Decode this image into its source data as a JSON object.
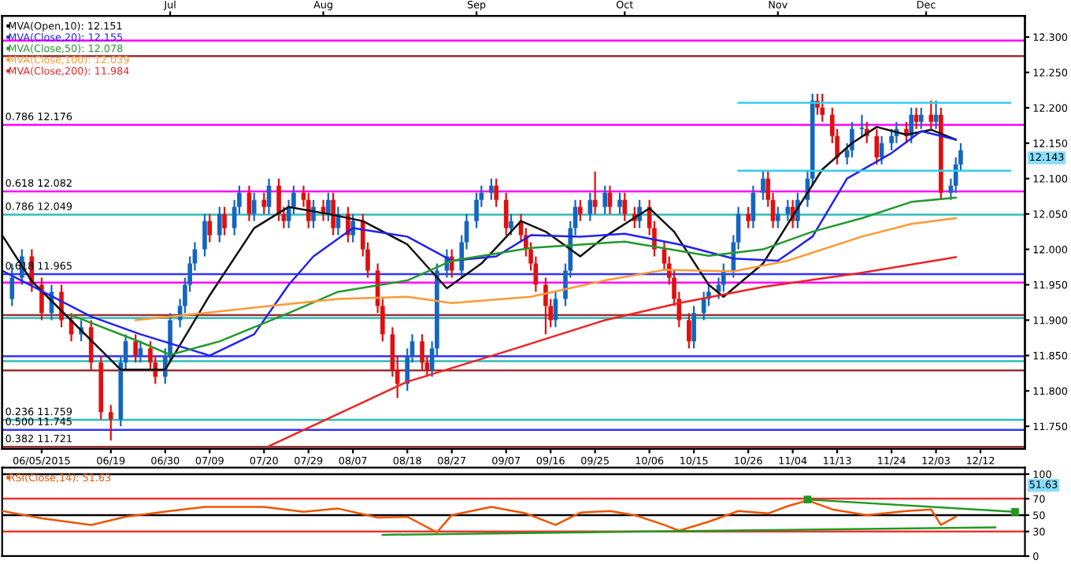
{
  "chart_data": [
    {
      "type": "candlestick",
      "x": [
        "2015-05-30",
        "2015-06-01",
        "2015-06-03",
        "2015-06-05",
        "2015-06-07",
        "2015-06-09",
        "2015-06-11",
        "2015-06-13",
        "2015-06-15",
        "2015-06-17",
        "2015-06-19",
        "2015-06-21",
        "2015-06-22",
        "2015-06-24",
        "2015-06-25",
        "2015-06-27",
        "2015-06-28",
        "2015-06-30",
        "2015-07-01",
        "2015-07-03",
        "2015-07-04",
        "2015-07-05",
        "2015-07-06",
        "2015-07-08",
        "2015-07-09",
        "2015-07-11",
        "2015-07-12",
        "2015-07-14",
        "2015-07-15",
        "2015-07-17",
        "2015-07-18",
        "2015-07-20",
        "2015-07-21",
        "2015-07-23",
        "2015-07-24",
        "2015-07-25",
        "2015-07-26",
        "2015-07-28",
        "2015-07-29",
        "2015-07-30",
        "2015-08-01",
        "2015-08-02",
        "2015-08-03",
        "2015-08-04",
        "2015-08-06",
        "2015-08-07",
        "2015-08-09",
        "2015-08-10",
        "2015-08-12",
        "2015-08-13",
        "2015-08-15",
        "2015-08-16",
        "2015-08-18",
        "2015-08-19",
        "2015-08-21",
        "2015-08-22",
        "2015-08-23",
        "2015-08-24",
        "2015-08-26",
        "2015-08-27",
        "2015-08-29",
        "2015-08-30",
        "2015-09-01",
        "2015-09-02",
        "2015-09-04",
        "2015-09-05",
        "2015-09-07",
        "2015-09-08",
        "2015-09-10",
        "2015-09-11",
        "2015-09-12",
        "2015-09-13",
        "2015-09-15",
        "2015-09-16",
        "2015-09-17",
        "2015-09-19",
        "2015-09-20",
        "2015-09-21",
        "2015-09-22",
        "2015-09-24",
        "2015-09-25",
        "2015-09-27",
        "2015-09-28",
        "2015-09-30",
        "2015-10-01",
        "2015-10-03",
        "2015-10-04",
        "2015-10-06",
        "2015-10-07",
        "2015-10-09",
        "2015-10-10",
        "2015-10-11",
        "2015-10-12",
        "2015-10-14",
        "2015-10-15",
        "2015-10-17",
        "2015-10-18",
        "2015-10-20",
        "2015-10-21",
        "2015-10-23",
        "2015-10-24",
        "2015-10-26",
        "2015-10-27",
        "2015-10-29",
        "2015-10-30",
        "2015-10-31",
        "2015-11-01",
        "2015-11-03",
        "2015-11-04",
        "2015-11-05",
        "2015-11-07",
        "2015-11-08",
        "2015-11-09",
        "2015-11-10",
        "2015-11-12",
        "2015-11-13",
        "2015-11-15",
        "2015-11-16",
        "2015-11-18",
        "2015-11-19",
        "2015-11-21",
        "2015-11-22",
        "2015-11-24",
        "2015-11-25",
        "2015-11-27",
        "2015-11-28",
        "2015-11-29",
        "2015-11-30",
        "2015-12-02",
        "2015-12-03",
        "2015-12-04",
        "2015-12-06",
        "2015-12-07",
        "2015-12-08"
      ],
      "ohlc": [
        [
          11.93,
          11.98,
          11.92,
          11.96
        ],
        [
          11.96,
          12.0,
          11.95,
          11.99
        ],
        [
          11.99,
          12.0,
          11.94,
          11.95
        ],
        [
          11.95,
          11.96,
          11.9,
          11.91
        ],
        [
          11.91,
          11.95,
          11.9,
          11.94
        ],
        [
          11.94,
          11.95,
          11.89,
          11.9
        ],
        [
          11.9,
          11.91,
          11.87,
          11.88
        ],
        [
          11.88,
          11.9,
          11.87,
          11.89
        ],
        [
          11.89,
          11.9,
          11.83,
          11.84
        ],
        [
          11.84,
          11.85,
          11.76,
          11.77
        ],
        [
          11.77,
          11.78,
          11.73,
          11.76
        ],
        [
          11.76,
          11.85,
          11.75,
          11.84
        ],
        [
          11.84,
          11.88,
          11.83,
          11.87
        ],
        [
          11.87,
          11.88,
          11.84,
          11.85
        ],
        [
          11.85,
          11.87,
          11.84,
          11.86
        ],
        [
          11.86,
          11.87,
          11.83,
          11.84
        ],
        [
          11.84,
          11.85,
          11.81,
          11.82
        ],
        [
          11.82,
          11.86,
          11.81,
          11.85
        ],
        [
          11.85,
          11.91,
          11.84,
          11.9
        ],
        [
          11.9,
          11.93,
          11.89,
          11.92
        ],
        [
          11.92,
          11.96,
          11.91,
          11.95
        ],
        [
          11.95,
          11.99,
          11.94,
          11.98
        ],
        [
          11.98,
          12.01,
          11.97,
          12.0
        ],
        [
          12.0,
          12.05,
          11.99,
          12.04
        ],
        [
          12.04,
          12.05,
          12.01,
          12.02
        ],
        [
          12.02,
          12.06,
          12.01,
          12.05
        ],
        [
          12.05,
          12.06,
          12.02,
          12.03
        ],
        [
          12.03,
          12.07,
          12.02,
          12.06
        ],
        [
          12.06,
          12.09,
          12.05,
          12.08
        ],
        [
          12.08,
          12.09,
          12.04,
          12.05
        ],
        [
          12.05,
          12.08,
          12.04,
          12.07
        ],
        [
          12.07,
          12.08,
          12.05,
          12.06
        ],
        [
          12.06,
          12.1,
          12.05,
          12.09
        ],
        [
          12.09,
          12.1,
          12.04,
          12.05
        ],
        [
          12.05,
          12.06,
          12.03,
          12.04
        ],
        [
          12.04,
          12.07,
          12.03,
          12.06
        ],
        [
          12.06,
          12.09,
          12.05,
          12.08
        ],
        [
          12.08,
          12.09,
          12.06,
          12.07
        ],
        [
          12.07,
          12.08,
          12.03,
          12.04
        ],
        [
          12.04,
          12.07,
          12.03,
          12.06
        ],
        [
          12.06,
          12.07,
          12.04,
          12.05
        ],
        [
          12.05,
          12.08,
          12.04,
          12.07
        ],
        [
          12.07,
          12.08,
          12.02,
          12.03
        ],
        [
          12.03,
          12.06,
          12.02,
          12.05
        ],
        [
          12.05,
          12.06,
          12.01,
          12.02
        ],
        [
          12.02,
          12.05,
          12.01,
          12.04
        ],
        [
          12.04,
          12.05,
          11.99,
          12.0
        ],
        [
          12.0,
          12.01,
          11.96,
          11.97
        ],
        [
          11.97,
          11.98,
          11.91,
          11.92
        ],
        [
          11.92,
          11.93,
          11.87,
          11.88
        ],
        [
          11.88,
          11.89,
          11.82,
          11.83
        ],
        [
          11.83,
          11.85,
          11.79,
          11.81
        ],
        [
          11.81,
          11.86,
          11.8,
          11.85
        ],
        [
          11.85,
          11.88,
          11.84,
          11.87
        ],
        [
          11.87,
          11.88,
          11.83,
          11.84
        ],
        [
          11.84,
          11.85,
          11.82,
          11.83
        ],
        [
          11.83,
          11.87,
          11.82,
          11.86
        ],
        [
          11.86,
          11.98,
          11.85,
          11.97
        ],
        [
          11.97,
          12.0,
          11.96,
          11.99
        ],
        [
          11.99,
          12.0,
          11.96,
          11.97
        ],
        [
          11.97,
          12.02,
          11.96,
          12.01
        ],
        [
          12.01,
          12.05,
          12.0,
          12.04
        ],
        [
          12.04,
          12.08,
          12.03,
          12.07
        ],
        [
          12.07,
          12.09,
          12.06,
          12.08
        ],
        [
          12.08,
          12.1,
          12.07,
          12.09
        ],
        [
          12.09,
          12.1,
          12.06,
          12.07
        ],
        [
          12.07,
          12.08,
          12.02,
          12.03
        ],
        [
          12.03,
          12.05,
          12.02,
          12.04
        ],
        [
          12.04,
          12.05,
          12.01,
          12.02
        ],
        [
          12.02,
          12.03,
          11.99,
          12.0
        ],
        [
          12.0,
          12.01,
          11.97,
          11.98
        ],
        [
          11.98,
          11.99,
          11.94,
          11.95
        ],
        [
          11.95,
          11.96,
          11.88,
          11.92
        ],
        [
          11.92,
          11.93,
          11.89,
          11.9
        ],
        [
          11.9,
          11.94,
          11.89,
          11.93
        ],
        [
          11.93,
          11.98,
          11.92,
          11.97
        ],
        [
          11.97,
          12.04,
          11.96,
          12.03
        ],
        [
          12.03,
          12.07,
          12.02,
          12.06
        ],
        [
          12.06,
          12.07,
          12.04,
          12.05
        ],
        [
          12.05,
          12.08,
          12.04,
          12.07
        ],
        [
          12.07,
          12.11,
          12.05,
          12.06
        ],
        [
          12.06,
          12.09,
          12.05,
          12.08
        ],
        [
          12.08,
          12.09,
          12.05,
          12.06
        ],
        [
          12.06,
          12.08,
          12.05,
          12.07
        ],
        [
          12.07,
          12.08,
          12.04,
          12.05
        ],
        [
          12.05,
          12.06,
          12.03,
          12.04
        ],
        [
          12.04,
          12.07,
          12.03,
          12.06
        ],
        [
          12.06,
          12.07,
          12.02,
          12.03
        ],
        [
          12.03,
          12.04,
          11.99,
          12.0
        ],
        [
          12.0,
          12.01,
          11.97,
          11.98
        ],
        [
          11.98,
          11.99,
          11.95,
          11.96
        ],
        [
          11.96,
          11.97,
          11.92,
          11.93
        ],
        [
          11.93,
          11.94,
          11.89,
          11.9
        ],
        [
          11.9,
          11.91,
          11.86,
          11.87
        ],
        [
          11.87,
          11.92,
          11.86,
          11.91
        ],
        [
          11.91,
          11.94,
          11.9,
          11.93
        ],
        [
          11.93,
          11.95,
          11.92,
          11.94
        ],
        [
          11.94,
          11.96,
          11.93,
          11.95
        ],
        [
          11.95,
          11.98,
          11.94,
          11.97
        ],
        [
          11.97,
          12.02,
          11.96,
          12.01
        ],
        [
          12.01,
          12.06,
          12.0,
          12.05
        ],
        [
          12.05,
          12.06,
          12.03,
          12.04
        ],
        [
          12.04,
          12.09,
          12.03,
          12.08
        ],
        [
          12.08,
          12.11,
          12.07,
          12.1
        ],
        [
          12.1,
          12.11,
          12.06,
          12.07
        ],
        [
          12.07,
          12.08,
          12.03,
          12.04
        ],
        [
          12.04,
          12.06,
          12.03,
          12.05
        ],
        [
          12.05,
          12.07,
          12.04,
          12.06
        ],
        [
          12.06,
          12.07,
          12.03,
          12.04
        ],
        [
          12.04,
          12.08,
          12.03,
          12.07
        ],
        [
          12.07,
          12.11,
          12.06,
          12.1
        ],
        [
          12.1,
          12.22,
          12.09,
          12.21
        ],
        [
          12.21,
          12.22,
          12.19,
          12.2
        ],
        [
          12.2,
          12.22,
          12.18,
          12.19
        ],
        [
          12.19,
          12.2,
          12.15,
          12.16
        ],
        [
          12.16,
          12.17,
          12.12,
          12.13
        ],
        [
          12.13,
          12.15,
          12.12,
          12.14
        ],
        [
          12.14,
          12.18,
          12.13,
          12.17
        ],
        [
          12.17,
          12.19,
          12.16,
          12.17
        ],
        [
          12.17,
          12.18,
          12.15,
          12.16
        ],
        [
          12.16,
          12.17,
          12.12,
          12.13
        ],
        [
          12.13,
          12.16,
          12.12,
          12.15
        ],
        [
          12.15,
          12.17,
          12.14,
          12.16
        ],
        [
          12.16,
          12.18,
          12.15,
          12.17
        ],
        [
          12.17,
          12.18,
          12.15,
          12.16
        ],
        [
          12.16,
          12.2,
          12.15,
          12.19
        ],
        [
          12.19,
          12.2,
          12.17,
          12.18
        ],
        [
          12.18,
          12.2,
          12.17,
          12.19
        ],
        [
          12.19,
          12.21,
          12.17,
          12.18
        ],
        [
          12.18,
          12.21,
          12.17,
          12.19
        ],
        [
          12.19,
          12.2,
          12.07,
          12.08
        ],
        [
          12.08,
          12.1,
          12.07,
          12.09
        ],
        [
          12.09,
          12.13,
          12.08,
          12.12
        ],
        [
          12.12,
          12.15,
          12.11,
          12.14
        ]
      ],
      "colors": [
        "#1565c0",
        "#1565c0",
        "#e01010",
        "#e01010",
        "#1565c0",
        "#e01010",
        "#e01010",
        "#1565c0",
        "#e01010",
        "#e01010",
        "#e01010",
        "#1565c0",
        "#1565c0",
        "#e01010",
        "#1565c0",
        "#e01010",
        "#e01010",
        "#1565c0",
        "#1565c0",
        "#1565c0",
        "#1565c0",
        "#1565c0",
        "#1565c0",
        "#1565c0",
        "#e01010",
        "#1565c0",
        "#e01010",
        "#1565c0",
        "#1565c0",
        "#e01010",
        "#1565c0",
        "#e01010",
        "#1565c0",
        "#e01010",
        "#e01010",
        "#1565c0",
        "#1565c0",
        "#e01010",
        "#e01010",
        "#1565c0",
        "#e01010",
        "#1565c0",
        "#e01010",
        "#1565c0",
        "#e01010",
        "#1565c0",
        "#e01010",
        "#e01010",
        "#e01010",
        "#e01010",
        "#e01010",
        "#e01010",
        "#1565c0",
        "#1565c0",
        "#e01010",
        "#e01010",
        "#1565c0",
        "#1565c0",
        "#1565c0",
        "#e01010",
        "#1565c0",
        "#1565c0",
        "#1565c0",
        "#1565c0",
        "#1565c0",
        "#e01010",
        "#e01010",
        "#1565c0",
        "#e01010",
        "#e01010",
        "#e01010",
        "#e01010",
        "#e01010",
        "#e01010",
        "#1565c0",
        "#1565c0",
        "#1565c0",
        "#1565c0",
        "#e01010",
        "#1565c0",
        "#e01010",
        "#1565c0",
        "#e01010",
        "#1565c0",
        "#e01010",
        "#e01010",
        "#1565c0",
        "#e01010",
        "#e01010",
        "#e01010",
        "#e01010",
        "#e01010",
        "#e01010",
        "#e01010",
        "#1565c0",
        "#1565c0",
        "#1565c0",
        "#1565c0",
        "#1565c0",
        "#1565c0",
        "#1565c0",
        "#e01010",
        "#1565c0",
        "#1565c0",
        "#e01010",
        "#e01010",
        "#1565c0",
        "#1565c0",
        "#e01010",
        "#1565c0",
        "#1565c0",
        "#1565c0",
        "#e01010",
        "#e01010",
        "#e01010",
        "#e01010",
        "#1565c0",
        "#1565c0",
        "#1565c0",
        "#e01010",
        "#e01010",
        "#1565c0",
        "#1565c0",
        "#1565c0",
        "#e01010",
        "#1565c0",
        "#e01010",
        "#1565c0",
        "#e01010",
        "#1565c0",
        "#e01010",
        "#1565c0",
        "#1565c0",
        "#1565c0"
      ],
      "series": [
        {
          "type": "line",
          "name": "MVA(Open,10): 12.151",
          "color": "#111111",
          "x": [
            "2015-05-28",
            "2015-06-03",
            "2015-06-21",
            "2015-06-30",
            "2015-07-09",
            "2015-07-18",
            "2015-07-25",
            "2015-08-02",
            "2015-08-09",
            "2015-08-18",
            "2015-08-26",
            "2015-09-02",
            "2015-09-10",
            "2015-09-15",
            "2015-09-22",
            "2015-09-27",
            "2015-10-06",
            "2015-10-11",
            "2015-10-18",
            "2015-10-21",
            "2015-10-29",
            "2015-11-04",
            "2015-11-10",
            "2015-11-16",
            "2015-11-21",
            "2015-11-27",
            "2015-12-02",
            "2015-12-07"
          ],
          "values": [
            12.02,
            11.955,
            11.83,
            11.83,
            11.935,
            12.03,
            12.06,
            12.05,
            12.04,
            12.007,
            11.945,
            11.98,
            12.04,
            12.025,
            11.99,
            12.018,
            12.058,
            12.025,
            11.95,
            11.933,
            11.98,
            12.047,
            12.113,
            12.15,
            12.173,
            12.162,
            12.169,
            12.155
          ]
        },
        {
          "type": "line",
          "name": "MVA(Close,20): 12.155",
          "color": "#2222ee",
          "x": [
            "2015-05-28",
            "2015-06-15",
            "2015-06-25",
            "2015-07-09",
            "2015-07-18",
            "2015-07-25",
            "2015-07-30",
            "2015-08-07",
            "2015-08-18",
            "2015-08-27",
            "2015-09-05",
            "2015-09-12",
            "2015-09-22",
            "2015-10-01",
            "2015-10-12",
            "2015-10-23",
            "2015-11-01",
            "2015-11-08",
            "2015-11-15",
            "2015-11-24",
            "2015-11-30",
            "2015-12-07"
          ],
          "values": [
            11.97,
            11.905,
            11.88,
            11.85,
            11.88,
            11.95,
            11.99,
            12.03,
            12.018,
            11.984,
            11.99,
            12.02,
            12.018,
            12.022,
            12.007,
            11.987,
            11.984,
            12.018,
            12.1,
            12.136,
            12.167,
            12.155
          ]
        },
        {
          "type": "line",
          "name": "MVA(Close,50): 12.078",
          "color": "#22992b",
          "x": [
            "2015-06-11",
            "2015-06-25",
            "2015-07-01",
            "2015-07-11",
            "2015-07-25",
            "2015-08-04",
            "2015-08-18",
            "2015-08-27",
            "2015-09-12",
            "2015-10-01",
            "2015-10-18",
            "2015-10-29",
            "2015-11-08",
            "2015-11-18",
            "2015-11-28",
            "2015-12-07"
          ],
          "values": [
            11.907,
            11.869,
            11.851,
            11.87,
            11.91,
            11.94,
            11.956,
            11.984,
            12.002,
            12.011,
            11.991,
            12.0,
            12.025,
            12.044,
            12.067,
            12.073
          ]
        },
        {
          "type": "line",
          "name": "MVA(Close,100): 12.039",
          "color": "#ff9933",
          "x": [
            "2015-06-24",
            "2015-07-04",
            "2015-07-21",
            "2015-08-04",
            "2015-08-18",
            "2015-08-27",
            "2015-09-12",
            "2015-09-27",
            "2015-10-09",
            "2015-10-23",
            "2015-11-03",
            "2015-11-18",
            "2015-11-28",
            "2015-12-07"
          ],
          "values": [
            11.9,
            11.907,
            11.92,
            11.93,
            11.933,
            11.924,
            11.933,
            11.956,
            11.971,
            11.969,
            11.984,
            12.018,
            12.036,
            12.044
          ]
        },
        {
          "type": "line",
          "name": "MVA(Close,200): 11.984",
          "color": "#ee2222",
          "x": [
            "2015-07-21",
            "2015-08-18",
            "2015-09-08",
            "2015-09-27",
            "2015-10-12",
            "2015-10-29",
            "2015-11-18",
            "2015-12-07"
          ],
          "values": [
            11.722,
            11.813,
            11.858,
            11.9,
            11.924,
            11.947,
            11.967,
            11.989
          ]
        },
        {
          "type": "line",
          "color": "#33ccee",
          "x": [
            "2015-10-24",
            "2015-12-18"
          ],
          "values": [
            12.207,
            12.207
          ]
        },
        {
          "type": "line",
          "color": "#33ccee",
          "x": [
            "2015-10-24",
            "2015-12-18"
          ],
          "values": [
            12.111,
            12.111
          ]
        }
      ],
      "ref_lines": [
        {
          "axis": "y",
          "value": 12.295,
          "color": "#ff00ff"
        },
        {
          "axis": "y",
          "value": 12.273,
          "color": "#993333"
        },
        {
          "axis": "y",
          "value": 12.176,
          "color": "#ff00ff",
          "label": "0.786 12.176"
        },
        {
          "axis": "y",
          "value": 12.082,
          "color": "#ff00ff",
          "label": "0.618 12.082"
        },
        {
          "axis": "y",
          "value": 12.049,
          "color": "#33bbbb",
          "label": "0.786 12.049"
        },
        {
          "axis": "y",
          "value": 11.965,
          "color": "#3333ff",
          "label": "0.618 11.965"
        },
        {
          "axis": "y",
          "value": 11.953,
          "color": "#ff00ff"
        },
        {
          "axis": "y",
          "value": 11.907,
          "color": "#993333"
        },
        {
          "axis": "y",
          "value": 11.903,
          "color": "#33bbbb"
        },
        {
          "axis": "y",
          "value": 11.849,
          "color": "#3333ff"
        },
        {
          "axis": "y",
          "value": 11.842,
          "color": "#33bbbb"
        },
        {
          "axis": "y",
          "value": 11.829,
          "color": "#993333"
        },
        {
          "axis": "y",
          "value": 11.759,
          "color": "#33bbbb",
          "label": "0.236 11.759"
        },
        {
          "axis": "y",
          "value": 11.745,
          "color": "#3333ff",
          "label": "0.500 11.745"
        },
        {
          "axis": "y",
          "value": 11.721,
          "color": "#993333",
          "label": "0.382 11.721"
        }
      ],
      "annotations": [
        "12.143"
      ],
      "xlim": [
        "2015-05-28",
        "2015-12-21"
      ],
      "ylim": [
        11.718,
        12.33
      ],
      "xticks": [
        {
          "value": "2015-06-05",
          "label": "06/05/2015"
        },
        {
          "value": "2015-06-19",
          "label": "06/19"
        },
        {
          "value": "2015-06-30",
          "label": "06/30"
        },
        {
          "value": "2015-07-09",
          "label": "07/09"
        },
        {
          "value": "2015-07-20",
          "label": "07/20"
        },
        {
          "value": "2015-07-29",
          "label": "07/29"
        },
        {
          "value": "2015-08-07",
          "label": "08/07"
        },
        {
          "value": "2015-08-18",
          "label": "08/18"
        },
        {
          "value": "2015-08-27",
          "label": "08/27"
        },
        {
          "value": "2015-09-07",
          "label": "09/07"
        },
        {
          "value": "2015-09-16",
          "label": "09/16"
        },
        {
          "value": "2015-09-25",
          "label": "09/25"
        },
        {
          "value": "2015-10-06",
          "label": "10/06"
        },
        {
          "value": "2015-10-15",
          "label": "10/15"
        },
        {
          "value": "2015-10-26",
          "label": "10/26"
        },
        {
          "value": "2015-11-04",
          "label": "11/04"
        },
        {
          "value": "2015-11-13",
          "label": "11/13"
        },
        {
          "value": "2015-11-24",
          "label": "11/24"
        },
        {
          "value": "2015-12-03",
          "label": "12/03"
        },
        {
          "value": "2015-12-12",
          "label": "12/12"
        }
      ],
      "yticks": [
        {
          "value": 11.75,
          "label": "11.750"
        },
        {
          "value": 11.8,
          "label": "11.800"
        },
        {
          "value": 11.85,
          "label": "11.850"
        },
        {
          "value": 11.9,
          "label": "11.900"
        },
        {
          "value": 11.95,
          "label": "11.950"
        },
        {
          "value": 12.0,
          "label": "12.000"
        },
        {
          "value": 12.05,
          "label": "12.050"
        },
        {
          "value": 12.1,
          "label": "12.100"
        },
        {
          "value": 12.15,
          "label": "12.150"
        },
        {
          "value": 12.2,
          "label": "12.200"
        },
        {
          "value": 12.25,
          "label": "12.250"
        },
        {
          "value": 12.3,
          "label": "12.300"
        }
      ],
      "x2lim": [
        "2015-05-28",
        "2015-12-21"
      ],
      "x2ticks": [
        {
          "value": "2015-07-01",
          "label": "Jul"
        },
        {
          "value": "2015-08-01",
          "label": "Aug"
        },
        {
          "value": "2015-09-01",
          "label": "Sep"
        },
        {
          "value": "2015-10-01",
          "label": "Oct"
        },
        {
          "value": "2015-11-01",
          "label": "Nov"
        },
        {
          "value": "2015-12-01",
          "label": "Dec"
        }
      ],
      "legend": "top left",
      "grid": false
    },
    {
      "type": "line",
      "series": [
        {
          "name": "RSI(Close,14): 51.63",
          "color": "#ee5500",
          "x": [
            "2015-05-28",
            "2015-06-05",
            "2015-06-15",
            "2015-06-22",
            "2015-07-01",
            "2015-07-08",
            "2015-07-20",
            "2015-07-28",
            "2015-08-04",
            "2015-08-12",
            "2015-08-18",
            "2015-08-24",
            "2015-08-27",
            "2015-09-04",
            "2015-09-11",
            "2015-09-17",
            "2015-09-22",
            "2015-09-28",
            "2015-10-03",
            "2015-10-09",
            "2015-10-12",
            "2015-10-18",
            "2015-10-24",
            "2015-10-30",
            "2015-11-03",
            "2015-11-07",
            "2015-11-12",
            "2015-11-19",
            "2015-11-27",
            "2015-12-02",
            "2015-12-04",
            "2015-12-07"
          ],
          "values": [
            55,
            46,
            38,
            48,
            55,
            60,
            60,
            54,
            58,
            47,
            48,
            29,
            50,
            60,
            52,
            38,
            53,
            55,
            50,
            38,
            31,
            42,
            55,
            52,
            61,
            68,
            57,
            50,
            55,
            57,
            38,
            48
          ]
        },
        {
          "color": "#229922",
          "marker": "square",
          "x": [
            "2015-11-07",
            "2015-12-19"
          ],
          "values": [
            69,
            54
          ]
        },
        {
          "color": "#229922",
          "x": [
            "2015-08-13",
            "2015-12-15"
          ],
          "values": [
            26,
            35
          ]
        }
      ],
      "ref_lines": [
        {
          "axis": "y",
          "value": 100,
          "color": "#000000"
        },
        {
          "axis": "y",
          "value": 70,
          "color": "#ee3333"
        },
        {
          "axis": "y",
          "value": 50,
          "color": "#000000"
        },
        {
          "axis": "y",
          "value": 30,
          "color": "#ee3333"
        }
      ],
      "annotations": [
        "51.63"
      ],
      "xlim": [
        "2015-05-28",
        "2015-12-21"
      ],
      "ylim": [
        0,
        108
      ],
      "yticks": [
        0,
        30,
        50,
        70,
        100
      ],
      "tick_labels": "y",
      "legend": "top left",
      "grid": false
    }
  ]
}
